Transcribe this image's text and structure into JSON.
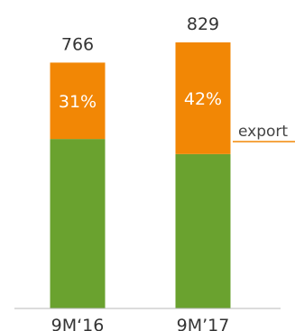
{
  "chart_data": {
    "type": "bar",
    "stacked": true,
    "categories": [
      "9M‘16",
      "9M’17"
    ],
    "totals": [
      766,
      829
    ],
    "export_share_labels": [
      "31%",
      "42%"
    ],
    "series": [
      {
        "name": "",
        "values": [
          528,
          481
        ],
        "color": "#6aa22f"
      },
      {
        "name": "export",
        "values": [
          238,
          348
        ],
        "color": "#f28705"
      }
    ],
    "ylim": [
      0,
      829
    ],
    "grid": false,
    "legend": "right"
  }
}
